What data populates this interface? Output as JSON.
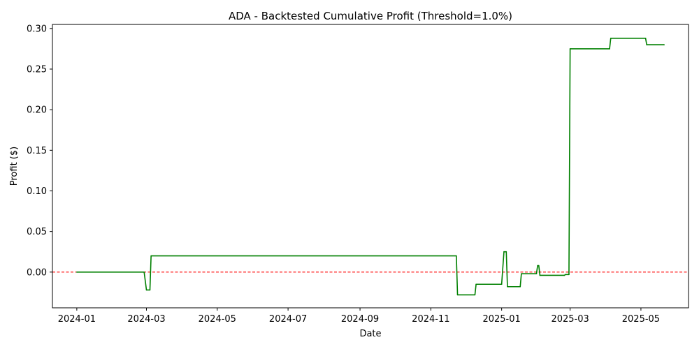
{
  "chart_data": {
    "type": "line",
    "title": "ADA - Backtested Cumulative Profit (Threshold=1.0%)",
    "xlabel": "Date",
    "ylabel": "Profit ($)",
    "x_is_date": true,
    "xlim": [
      "2023-12-11",
      "2025-06-11"
    ],
    "ylim": [
      -0.044,
      0.305
    ],
    "x_ticks": [
      "2024-01-01",
      "2024-03-01",
      "2024-05-01",
      "2024-07-01",
      "2024-09-01",
      "2024-11-01",
      "2025-01-01",
      "2025-03-01",
      "2025-05-01"
    ],
    "x_tick_labels": [
      "2024-01",
      "2024-03",
      "2024-05",
      "2024-07",
      "2024-09",
      "2024-11",
      "2025-01",
      "2025-03",
      "2025-05"
    ],
    "y_ticks": [
      0.0,
      0.05,
      0.1,
      0.15,
      0.2,
      0.25,
      0.3
    ],
    "y_tick_labels": [
      "0.00",
      "0.05",
      "0.10",
      "0.15",
      "0.20",
      "0.25",
      "0.30"
    ],
    "grid": false,
    "reference_line": {
      "y": 0.0,
      "color": "#ff0000",
      "style": "dashed"
    },
    "series": [
      {
        "color": "#008000",
        "points": [
          [
            "2024-01-01",
            0.0
          ],
          [
            "2024-02-28",
            0.0
          ],
          [
            "2024-03-01",
            -0.022
          ],
          [
            "2024-03-04",
            -0.022
          ],
          [
            "2024-03-05",
            0.02
          ],
          [
            "2024-11-23",
            0.02
          ],
          [
            "2024-11-24",
            -0.028
          ],
          [
            "2024-12-09",
            -0.028
          ],
          [
            "2024-12-10",
            -0.015
          ],
          [
            "2025-01-01",
            -0.015
          ],
          [
            "2025-01-03",
            0.025
          ],
          [
            "2025-01-05",
            0.025
          ],
          [
            "2025-01-06",
            -0.018
          ],
          [
            "2025-01-17",
            -0.018
          ],
          [
            "2025-01-18",
            -0.002
          ],
          [
            "2025-01-31",
            -0.002
          ],
          [
            "2025-02-01",
            0.008
          ],
          [
            "2025-02-02",
            0.008
          ],
          [
            "2025-02-03",
            -0.004
          ],
          [
            "2025-02-24",
            -0.004
          ],
          [
            "2025-02-25",
            -0.003
          ],
          [
            "2025-02-28",
            -0.003
          ],
          [
            "2025-03-01",
            0.275
          ],
          [
            "2025-04-04",
            0.275
          ],
          [
            "2025-04-05",
            0.288
          ],
          [
            "2025-05-05",
            0.288
          ],
          [
            "2025-05-06",
            0.28
          ],
          [
            "2025-05-21",
            0.28
          ]
        ]
      }
    ]
  }
}
